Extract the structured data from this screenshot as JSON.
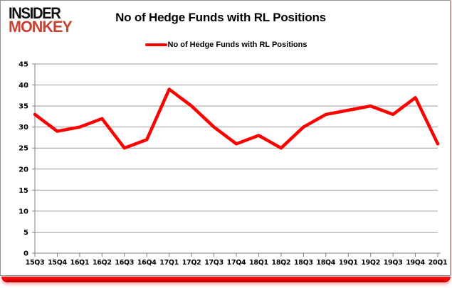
{
  "logo": {
    "line1": "INSIDER",
    "line2": "MONKEY"
  },
  "header": {
    "title": "No of Hedge Funds with RL Positions"
  },
  "legend": {
    "label": "No of Hedge Funds with RL Positions"
  },
  "colors": {
    "line": "#ff0000",
    "grid": "#9a9a9a",
    "axis": "#808080",
    "tick_text": "#000000",
    "logo_black": "#111111",
    "logo_red": "#c64232",
    "frame_border": "#8f8f8f",
    "bottom_bar": "#e30505"
  },
  "chart_data": {
    "type": "line",
    "title": "No of Hedge Funds with RL Positions",
    "categories": [
      "15Q3",
      "15Q4",
      "16Q1",
      "16Q2",
      "16Q3",
      "16Q4",
      "17Q1",
      "17Q2",
      "17Q3",
      "17Q4",
      "18Q1",
      "18Q2",
      "18Q3",
      "18Q4",
      "19Q1",
      "19Q2",
      "19Q3",
      "19Q4",
      "20Q1"
    ],
    "series": [
      {
        "name": "No of Hedge Funds with RL Positions",
        "values": [
          33,
          29,
          30,
          32,
          25,
          27,
          39,
          35,
          30,
          26,
          28,
          25,
          30,
          33,
          34,
          35,
          33,
          37,
          26
        ]
      }
    ],
    "xlabel": "",
    "ylabel": "",
    "ylim": [
      0,
      45
    ],
    "ytick_step": 5,
    "grid": true,
    "legend_position": "top"
  }
}
